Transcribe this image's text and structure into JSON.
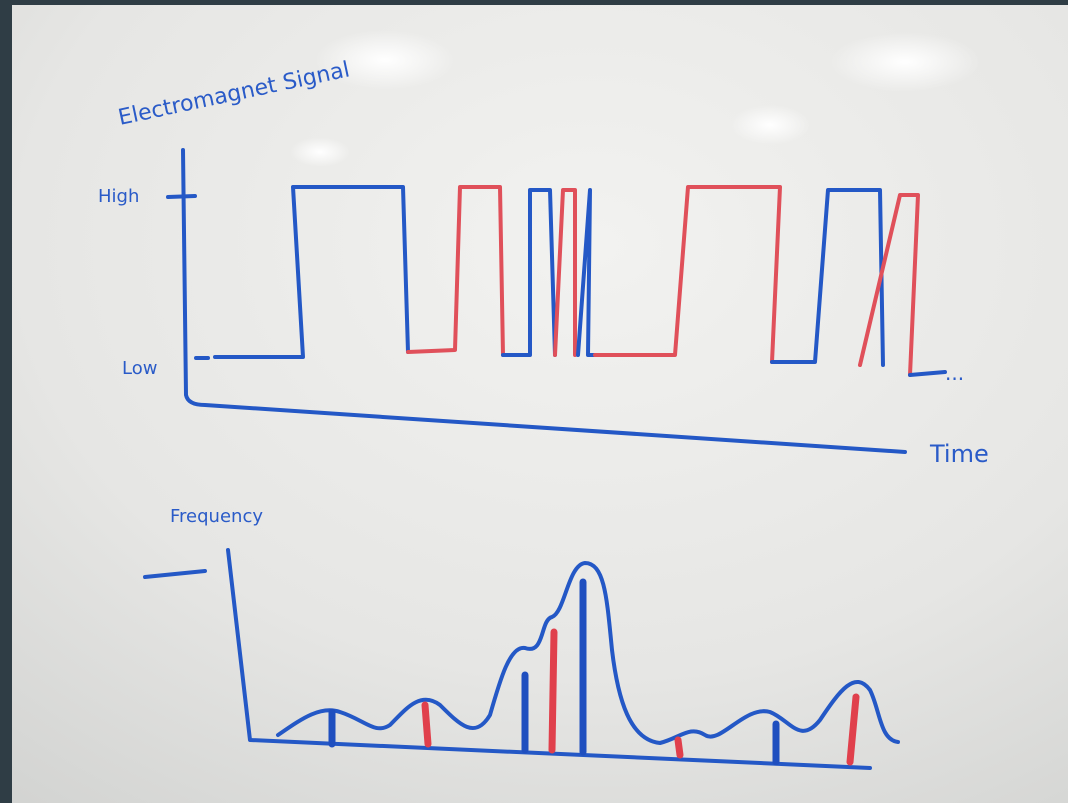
{
  "signal_chart": {
    "y_label": "Electromagnet Signal",
    "high_label": "High",
    "low_label": "Low",
    "x_label": "Time",
    "ellipsis": "..."
  },
  "frequency_chart": {
    "y_label": "Frequency"
  }
}
